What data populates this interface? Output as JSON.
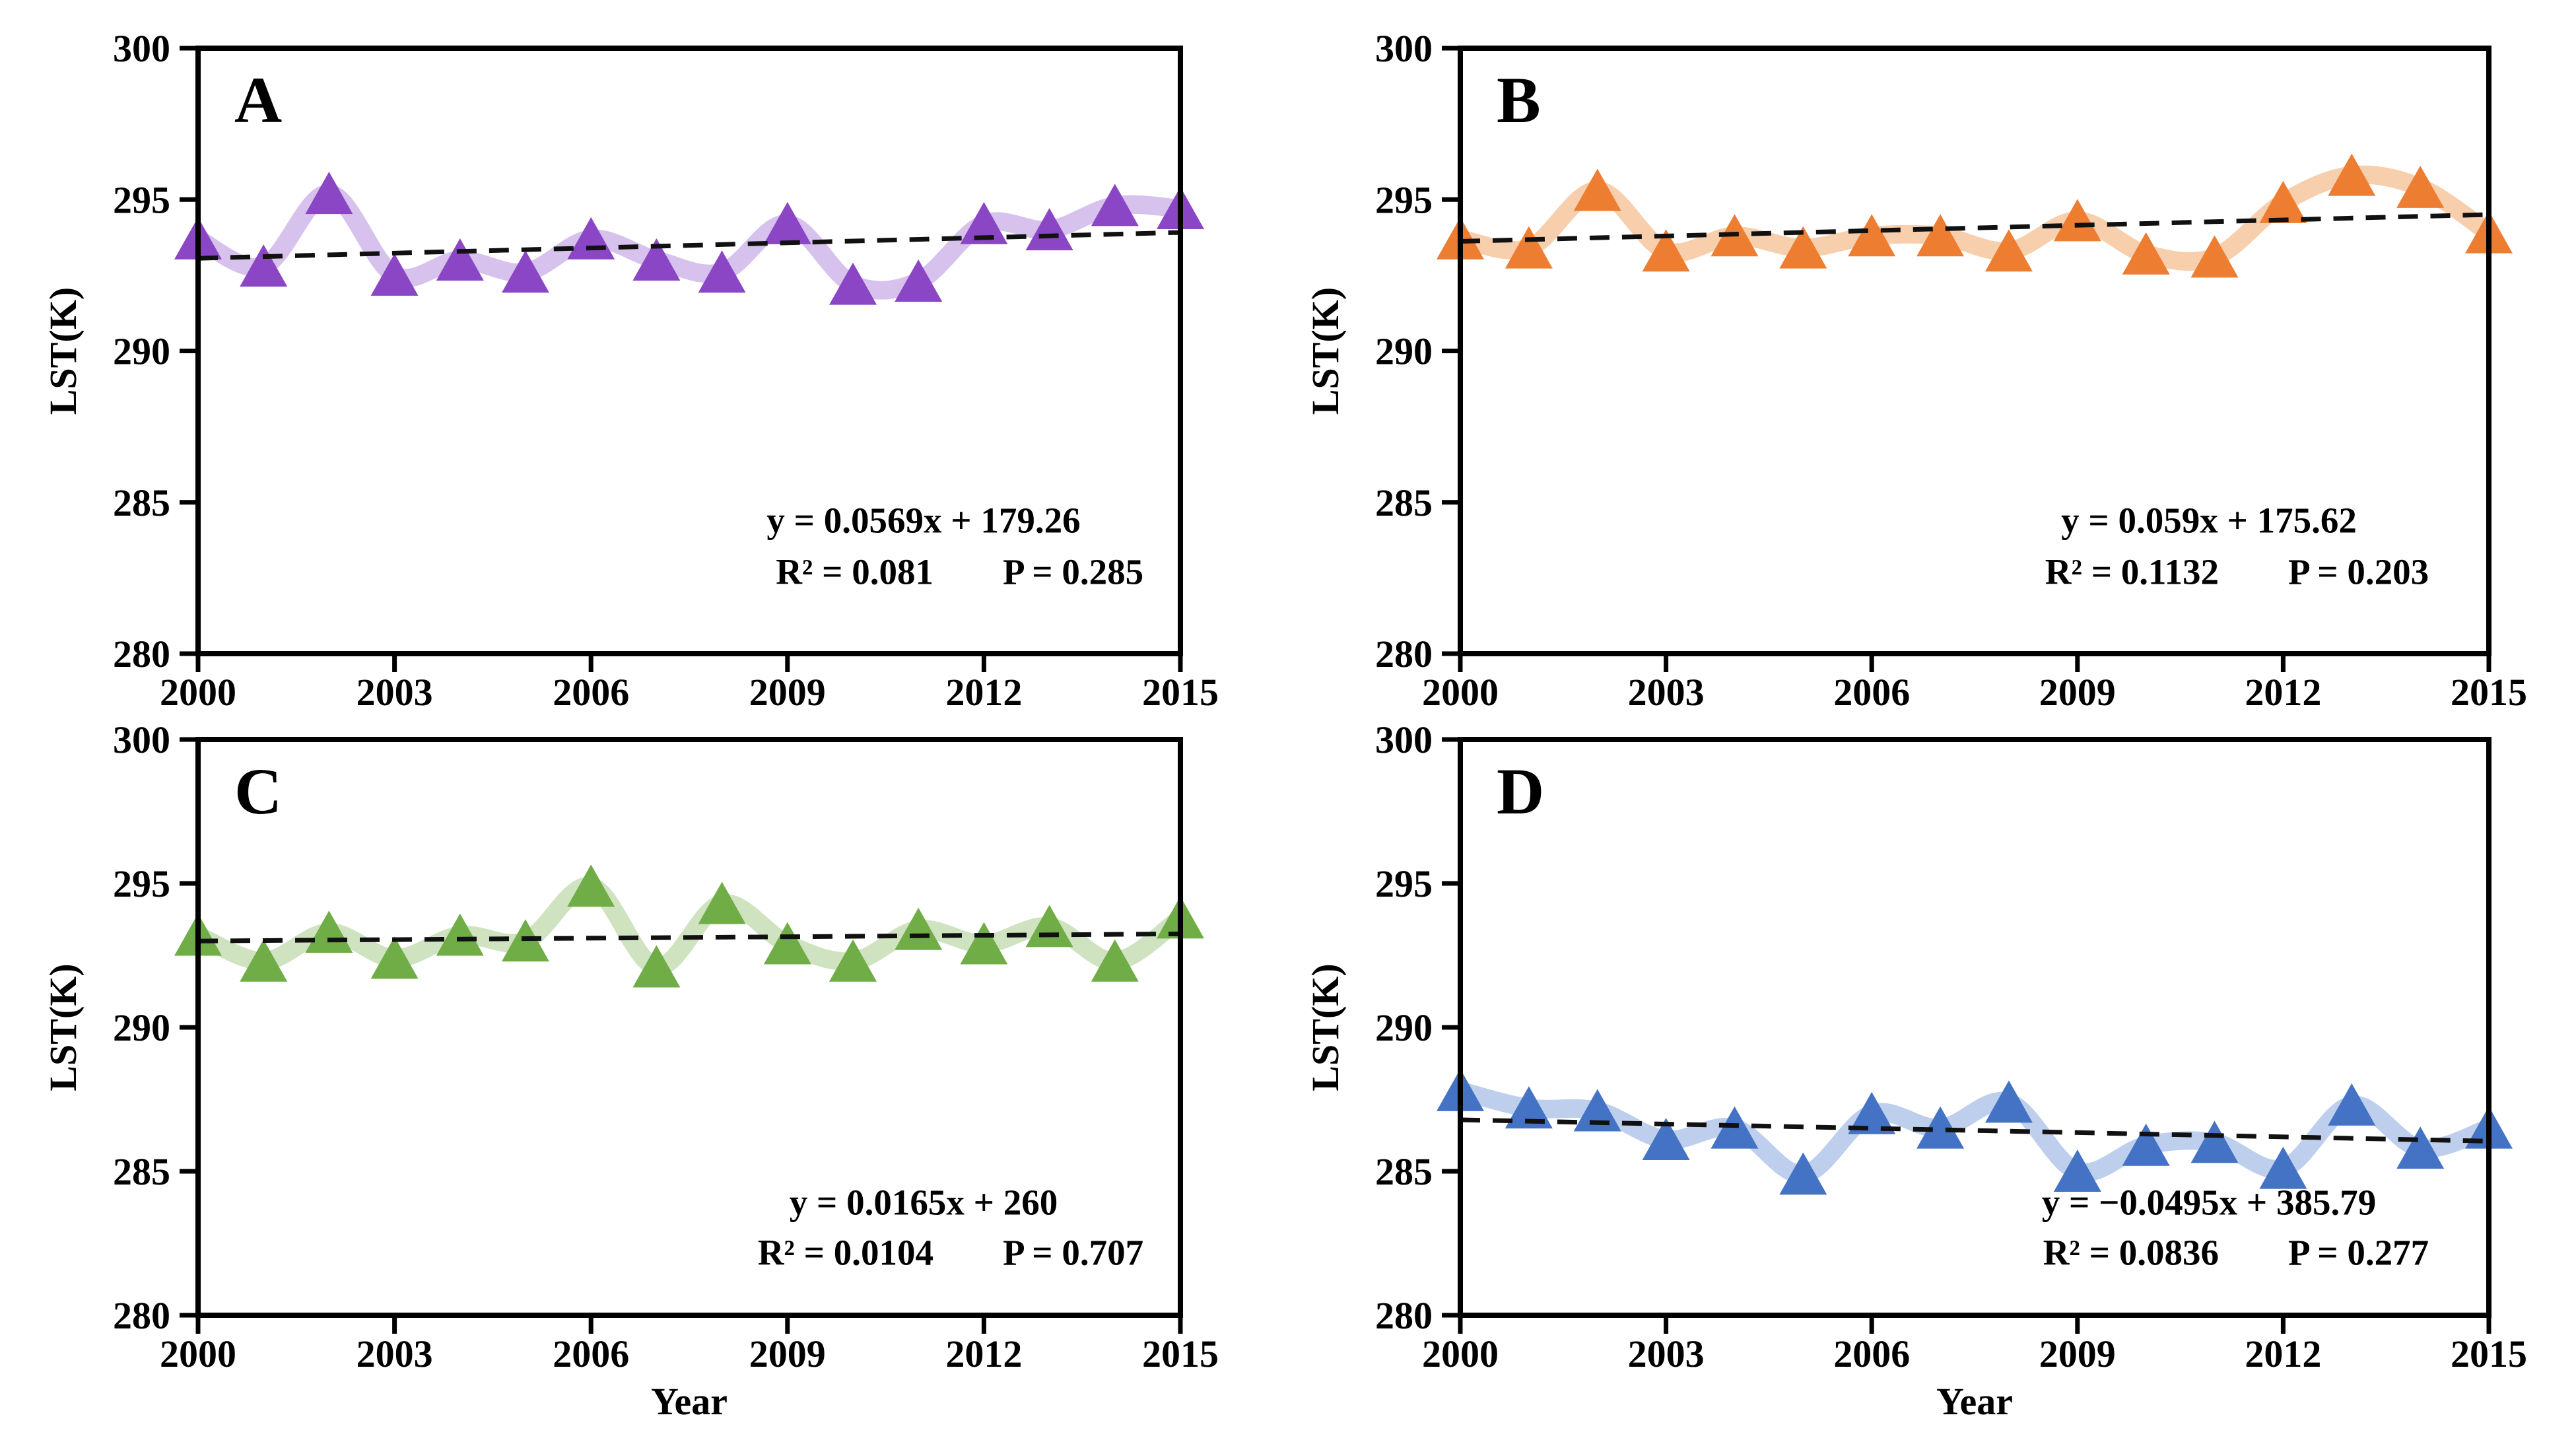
{
  "figure": {
    "ylabel": "LST(K)",
    "xlabel": "Year",
    "ylim": [
      280,
      300
    ],
    "xlim": [
      2000,
      2015
    ],
    "ytick_labels": [
      "300",
      "295",
      "290",
      "285",
      "280"
    ],
    "yticks": [
      300,
      295,
      290,
      285,
      280
    ],
    "xtick_labels": [
      "2000",
      "2003",
      "2006",
      "2009",
      "2012",
      "2015"
    ],
    "xticks": [
      2000,
      2003,
      2006,
      2009,
      2012,
      2015
    ],
    "trend_color": "#111111",
    "axis_color": "#000000"
  },
  "chart_data": [
    {
      "type": "line",
      "panel_label": "A",
      "title": "",
      "xlabel": "",
      "ylabel": "LST(K)",
      "x": [
        2000,
        2001,
        2002,
        2003,
        2004,
        2005,
        2006,
        2007,
        2008,
        2009,
        2010,
        2011,
        2012,
        2013,
        2014,
        2015
      ],
      "values": [
        293.7,
        292.8,
        295.2,
        292.5,
        293.0,
        292.6,
        293.7,
        293.0,
        292.6,
        294.2,
        292.2,
        292.3,
        294.2,
        294.0,
        294.8,
        294.7
      ],
      "trend": {
        "slope": 0.0569,
        "intercept": 179.26
      },
      "equation": "y = 0.0569x + 179.26",
      "r2_label": "R² = 0.081",
      "p_label": "P = 0.285",
      "marker_color": "#8A46C4",
      "band_color": "#D6C2EC",
      "ylim": [
        280,
        300
      ],
      "legend": "none",
      "grid": "off"
    },
    {
      "type": "line",
      "panel_label": "B",
      "title": "",
      "xlabel": "",
      "ylabel": "LST(K)",
      "x": [
        2000,
        2001,
        2002,
        2003,
        2004,
        2005,
        2006,
        2007,
        2008,
        2009,
        2010,
        2011,
        2012,
        2013,
        2014,
        2015
      ],
      "values": [
        293.7,
        293.4,
        295.3,
        293.3,
        293.8,
        293.4,
        293.8,
        293.8,
        293.3,
        294.3,
        293.2,
        293.1,
        294.9,
        295.8,
        295.4,
        293.9
      ],
      "trend": {
        "slope": 0.059,
        "intercept": 175.62
      },
      "equation": "y = 0.059x + 175.62",
      "r2_label": "R² = 0.1132",
      "p_label": "P = 0.203",
      "marker_color": "#ED7D31",
      "band_color": "#F7CFAC",
      "ylim": [
        280,
        300
      ],
      "legend": "none",
      "grid": "off"
    },
    {
      "type": "line",
      "panel_label": "C",
      "title": "",
      "xlabel": "Year",
      "ylabel": "LST(K)",
      "x": [
        2000,
        2001,
        2002,
        2003,
        2004,
        2005,
        2006,
        2007,
        2008,
        2009,
        2010,
        2011,
        2012,
        2013,
        2014,
        2015
      ],
      "values": [
        293.2,
        292.3,
        293.3,
        292.4,
        293.2,
        293.0,
        294.9,
        292.1,
        294.3,
        292.9,
        292.3,
        293.4,
        292.9,
        293.5,
        292.3,
        293.8
      ],
      "trend": {
        "slope": 0.0165,
        "intercept": 260
      },
      "equation": "y = 0.0165x + 260",
      "r2_label": "R² = 0.0104",
      "p_label": "P = 0.707",
      "marker_color": "#70AD47",
      "band_color": "#CFE3C0",
      "ylim": [
        280,
        300
      ],
      "legend": "none",
      "grid": "off"
    },
    {
      "type": "line",
      "panel_label": "D",
      "title": "",
      "xlabel": "Year",
      "ylabel": "LST(K)",
      "x": [
        2000,
        2001,
        2002,
        2003,
        2004,
        2005,
        2006,
        2007,
        2008,
        2009,
        2010,
        2011,
        2012,
        2013,
        2014,
        2015
      ],
      "values": [
        287.8,
        287.2,
        287.1,
        286.1,
        286.5,
        284.9,
        287.0,
        286.5,
        287.4,
        285.0,
        285.9,
        286.0,
        285.1,
        287.3,
        285.8,
        286.5
      ],
      "trend": {
        "slope": -0.0495,
        "intercept": 385.79
      },
      "equation": "y = −0.0495x + 385.79",
      "r2_label": "R² = 0.0836",
      "p_label": "P = 0.277",
      "marker_color": "#4472C4",
      "band_color": "#BDCFEC",
      "ylim": [
        280,
        300
      ],
      "legend": "none",
      "grid": "off"
    }
  ]
}
